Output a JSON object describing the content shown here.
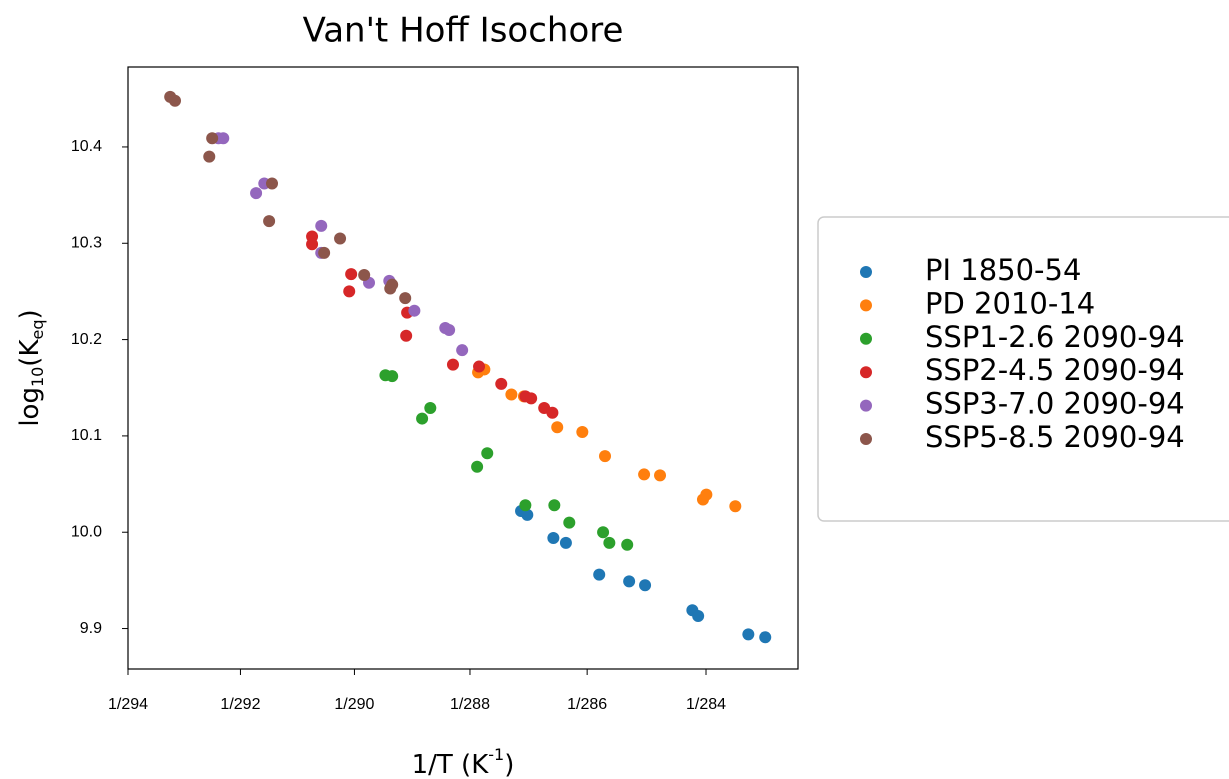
{
  "chart_data": {
    "type": "scatter",
    "title": "Van't Hoff Isochore",
    "xlabel": [
      "1/T (K",
      "-1",
      ")"
    ],
    "ylabel": [
      "log",
      "10",
      "(K",
      "eq",
      ")"
    ],
    "xlim": [
      0.00340136,
      0.00354019
    ],
    "ylim": [
      9.858,
      10.483
    ],
    "xticks": [
      {
        "value": 0.00340136,
        "label": "1/294"
      },
      {
        "value": 0.00342466,
        "label": "1/292"
      },
      {
        "value": 0.00344828,
        "label": "1/290"
      },
      {
        "value": 0.00347222,
        "label": "1/288"
      },
      {
        "value": 0.0034965,
        "label": "1/286"
      },
      {
        "value": 0.00352113,
        "label": "1/284"
      }
    ],
    "yticks": [
      9.9,
      {
        "value": 10,
        "label": "10.0"
      },
      10.1,
      10.2,
      10.3,
      10.4
    ],
    "grid": false,
    "legend": "outside right",
    "series": [
      {
        "name": "PI 1850-54",
        "color": "#1f77b4",
        "x": [
          0.0034828,
          0.0034841,
          0.0034895,
          0.0034921,
          0.003499,
          0.0035052,
          0.0035085,
          0.0035183,
          0.0035195,
          0.0035299,
          0.0035334
        ],
        "values": [
          10.022,
          10.018,
          9.994,
          9.989,
          9.956,
          9.949,
          9.945,
          9.919,
          9.913,
          9.894,
          9.891
        ]
      },
      {
        "name": "PD 2010-14",
        "color": "#ff7f0e",
        "x": [
          0.0034739,
          0.0034752,
          0.0034808,
          0.0034834,
          0.0034903,
          0.0034955,
          0.0035002,
          0.0035083,
          0.0035116,
          0.0035205,
          0.0035212,
          0.0035272
        ],
        "values": [
          10.166,
          10.169,
          10.143,
          10.141,
          10.109,
          10.104,
          10.079,
          10.06,
          10.059,
          10.034,
          10.039,
          10.027
        ]
      },
      {
        "name": "SSP1-2.6 2090-94",
        "color": "#2ca02c",
        "x": [
          0.0034547,
          0.0034561,
          0.0034623,
          0.003464,
          0.0034737,
          0.0034758,
          0.0034837,
          0.0034897,
          0.0034928,
          0.0034998,
          0.0035011,
          0.0035048
        ],
        "values": [
          10.163,
          10.162,
          10.118,
          10.129,
          10.068,
          10.082,
          10.028,
          10.028,
          10.01,
          10.0,
          9.989,
          9.987
        ]
      },
      {
        "name": "SSP2-4.5 2090-94",
        "color": "#d62728",
        "x": [
          0.0034395,
          0.0034395,
          0.0034476,
          0.0034472,
          0.0034592,
          0.003459,
          0.0034687,
          0.0034741,
          0.0034787,
          0.0034837,
          0.0034849,
          0.0034876,
          0.0034893
        ],
        "values": [
          10.307,
          10.299,
          10.268,
          10.25,
          10.228,
          10.204,
          10.174,
          10.172,
          10.154,
          10.141,
          10.139,
          10.129,
          10.124
        ]
      },
      {
        "name": "SSP3-7.0 2090-94",
        "color": "#9467bd",
        "x": [
          0.0034201,
          0.0034211,
          0.0034279,
          0.0034296,
          0.0034414,
          0.0034414,
          0.0034555,
          0.0034513,
          0.0034607,
          0.0034671,
          0.0034679,
          0.0034706
        ],
        "values": [
          10.409,
          10.409,
          10.352,
          10.362,
          10.318,
          10.29,
          10.261,
          10.259,
          10.23,
          10.212,
          10.21,
          10.189
        ]
      },
      {
        "name": "SSP5-8.5 2090-94",
        "color": "#8c564b",
        "x": [
          0.0034101,
          0.0034111,
          0.0034188,
          0.0034182,
          0.0034312,
          0.0034306,
          0.0034453,
          0.003442,
          0.0034503,
          0.0034557,
          0.0034561,
          0.0034588
        ],
        "values": [
          10.452,
          10.448,
          10.409,
          10.39,
          10.362,
          10.323,
          10.305,
          10.29,
          10.267,
          10.253,
          10.257,
          10.243
        ]
      }
    ]
  }
}
